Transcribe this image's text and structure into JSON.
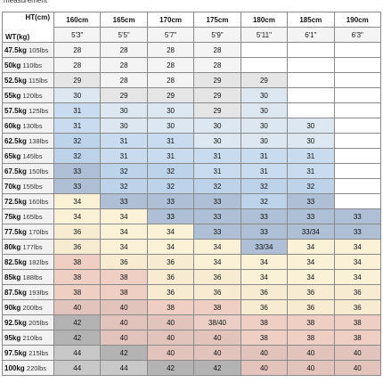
{
  "caption": "measurement",
  "table": {
    "height_label": "HT(cm)",
    "weight_label": "WT(kg)",
    "heights": [
      {
        "cm": "160cm",
        "ft": "5'3\""
      },
      {
        "cm": "165cm",
        "ft": "5'5\""
      },
      {
        "cm": "170cm",
        "ft": "5'7\""
      },
      {
        "cm": "175cm",
        "ft": "5'9\""
      },
      {
        "cm": "180cm",
        "ft": "5'11\""
      },
      {
        "cm": "185cm",
        "ft": "6'1\""
      },
      {
        "cm": "190cm",
        "ft": "6'3\""
      }
    ],
    "rows": [
      {
        "kg": "47.5kg",
        "lbs": "105lbs",
        "sizes": [
          "28",
          "28",
          "28",
          "28",
          "",
          "",
          ""
        ]
      },
      {
        "kg": "50kg",
        "lbs": "110lbs",
        "sizes": [
          "28",
          "28",
          "28",
          "28",
          "",
          "",
          ""
        ]
      },
      {
        "kg": "52.5kg",
        "lbs": "115lbs",
        "sizes": [
          "29",
          "28",
          "28",
          "29",
          "29",
          "",
          ""
        ]
      },
      {
        "kg": "55kg",
        "lbs": "120lbs",
        "sizes": [
          "30",
          "29",
          "29",
          "29",
          "30",
          "",
          ""
        ]
      },
      {
        "kg": "57.5kg",
        "lbs": "125lbs",
        "sizes": [
          "31",
          "30",
          "30",
          "29",
          "30",
          "",
          ""
        ]
      },
      {
        "kg": "60kg",
        "lbs": "130lbs",
        "sizes": [
          "31",
          "30",
          "30",
          "30",
          "30",
          "30",
          ""
        ]
      },
      {
        "kg": "62.5kg",
        "lbs": "138lbs",
        "sizes": [
          "32",
          "31",
          "31",
          "30",
          "30",
          "30",
          ""
        ]
      },
      {
        "kg": "65kg",
        "lbs": "145lbs",
        "sizes": [
          "32",
          "31",
          "31",
          "31",
          "31",
          "31",
          ""
        ]
      },
      {
        "kg": "67.5kg",
        "lbs": "150lbs",
        "sizes": [
          "33",
          "32",
          "32",
          "31",
          "31",
          "31",
          ""
        ]
      },
      {
        "kg": "70kg",
        "lbs": "155lbs",
        "sizes": [
          "33",
          "32",
          "32",
          "32",
          "32",
          "32",
          ""
        ]
      },
      {
        "kg": "72.5kg",
        "lbs": "160lbs",
        "sizes": [
          "34",
          "33",
          "33",
          "33",
          "32",
          "33",
          ""
        ]
      },
      {
        "kg": "75kg",
        "lbs": "165lbs",
        "sizes": [
          "34",
          "34",
          "33",
          "33",
          "33",
          "33",
          "33"
        ]
      },
      {
        "kg": "77.5kg",
        "lbs": "170lbs",
        "sizes": [
          "36",
          "34",
          "34",
          "33",
          "33",
          "33/34",
          "33"
        ]
      },
      {
        "kg": "80kg",
        "lbs": "177lbs",
        "sizes": [
          "36",
          "34",
          "34",
          "34",
          "33/34",
          "34",
          "34"
        ]
      },
      {
        "kg": "82.5kg",
        "lbs": "182lbs",
        "sizes": [
          "38",
          "36",
          "36",
          "34",
          "34",
          "34",
          "34"
        ]
      },
      {
        "kg": "85kg",
        "lbs": "188lbs",
        "sizes": [
          "38",
          "38",
          "36",
          "36",
          "34",
          "34",
          "34"
        ]
      },
      {
        "kg": "87.5kg",
        "lbs": "193lbs",
        "sizes": [
          "38",
          "38",
          "36",
          "36",
          "36",
          "36",
          "36"
        ]
      },
      {
        "kg": "90kg",
        "lbs": "200lbs",
        "sizes": [
          "40",
          "40",
          "38",
          "38",
          "36",
          "36",
          "36"
        ]
      },
      {
        "kg": "92.5kg",
        "lbs": "205lbs",
        "sizes": [
          "42",
          "40",
          "40",
          "38/40",
          "38",
          "38",
          "38"
        ]
      },
      {
        "kg": "95kg",
        "lbs": "210lbs",
        "sizes": [
          "42",
          "40",
          "40",
          "40",
          "38",
          "38",
          "38"
        ]
      },
      {
        "kg": "97.5kg",
        "lbs": "215lbs",
        "sizes": [
          "44",
          "42",
          "40",
          "40",
          "40",
          "40",
          "40"
        ]
      },
      {
        "kg": "100kg",
        "lbs": "220lbs",
        "sizes": [
          "44",
          "44",
          "42",
          "42",
          "40",
          "40",
          "40"
        ]
      }
    ]
  },
  "size_colors": {
    "28": "#f4f4f4",
    "29": "#e5e5e5",
    "30": "#dce7f1",
    "31": "#c9dcef",
    "32": "#bcd3ea",
    "33": "#aebfd6",
    "33/34": "#aebfd6",
    "34": "#fbf1d6",
    "36": "#f7ecd2",
    "38": "#efcfc4",
    "38/40": "#ebcfc6",
    "40": "#e2c4bd",
    "42": "#b3b3b3",
    "44": "#c8c8c8",
    "empty": "#ffffff",
    "weight_cell": "#f2f2f2",
    "border": "#8a8a8a"
  }
}
